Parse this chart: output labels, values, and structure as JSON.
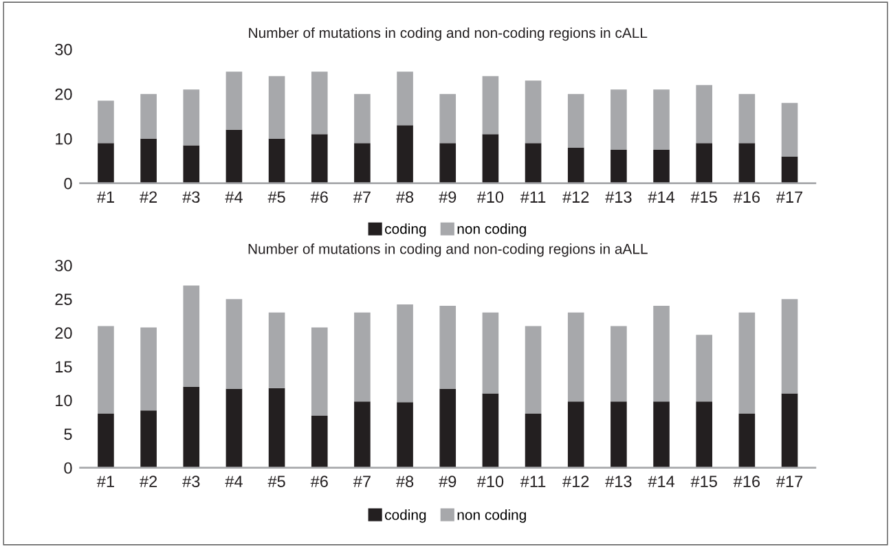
{
  "chart_data": [
    {
      "type": "bar",
      "title": "Number of mutations in coding and non-coding regions in cALL",
      "stacked": true,
      "categories": [
        "#1",
        "#2",
        "#3",
        "#4",
        "#5",
        "#6",
        "#7",
        "#8",
        "#9",
        "#10",
        "#11",
        "#12",
        "#13",
        "#14",
        "#15",
        "#16",
        "#17"
      ],
      "series": [
        {
          "name": "coding",
          "color": "#231f20",
          "values": [
            9,
            10,
            8.5,
            12,
            10,
            11,
            9,
            13,
            9,
            11,
            9,
            8,
            7.5,
            7.5,
            9,
            9,
            6
          ]
        },
        {
          "name": "non coding",
          "color": "#a7a8ab",
          "values": [
            9.5,
            10,
            12.5,
            13,
            14,
            14,
            11,
            12,
            11,
            13,
            14,
            12,
            13.5,
            13.5,
            13,
            11,
            12
          ]
        }
      ],
      "ylim": [
        0,
        30
      ],
      "yticks": [
        0,
        10,
        20,
        30
      ],
      "grid": false,
      "legend": "bottom"
    },
    {
      "type": "bar",
      "title": "Number of mutations in coding and non-coding regions in aALL",
      "stacked": true,
      "categories": [
        "#1",
        "#2",
        "#3",
        "#4",
        "#5",
        "#6",
        "#7",
        "#8",
        "#9",
        "#10",
        "#11",
        "#12",
        "#13",
        "#14",
        "#15",
        "#16",
        "#17"
      ],
      "series": [
        {
          "name": "coding",
          "color": "#231f20",
          "values": [
            8,
            8.5,
            12,
            11.7,
            11.8,
            7.7,
            9.8,
            9.7,
            11.7,
            11,
            8,
            9.8,
            9.8,
            9.8,
            9.8,
            8,
            11
          ]
        },
        {
          "name": "non coding",
          "color": "#a7a8ab",
          "values": [
            13,
            12.3,
            15,
            13.3,
            11.2,
            13.1,
            13.2,
            14.5,
            12.3,
            12,
            13,
            13.2,
            11.2,
            14.2,
            9.9,
            15,
            14
          ]
        }
      ],
      "ylim": [
        0,
        30
      ],
      "yticks": [
        0,
        5,
        10,
        15,
        20,
        25,
        30
      ],
      "grid": false,
      "legend": "bottom"
    }
  ]
}
